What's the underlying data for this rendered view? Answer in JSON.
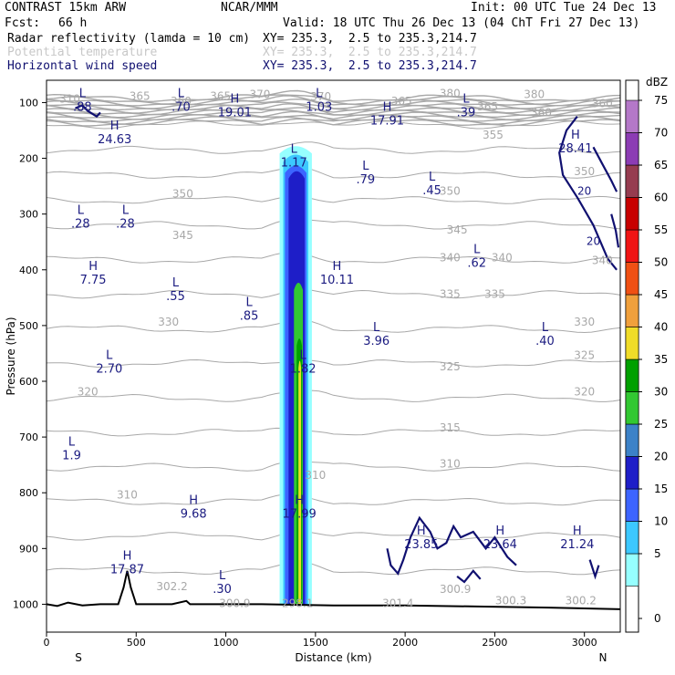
{
  "header": {
    "model": "CONTRAST 15km ARW",
    "org": "NCAR/MMM",
    "init": "Init: 00 UTC Tue 24 Dec 13",
    "fcst_label": "Fcst:",
    "fcst_value": "66 h",
    "valid": "Valid: 18 UTC Thu 26 Dec 13 (04 ChT Fri 27 Dec 13)",
    "fields": [
      {
        "name": "Radar reflectivity (lamda = 10 cm)",
        "xy": "XY= 235.3,  2.5 to 235.3,214.7",
        "color": "#000000"
      },
      {
        "name": "Potential temperature",
        "xy": "XY= 235.3,  2.5 to 235.3,214.7",
        "color": "#c8c8c8"
      },
      {
        "name": "Horizontal wind speed",
        "xy": "XY= 235.3,  2.5 to 235.3,214.7",
        "color": "#101070"
      }
    ]
  },
  "chart_data": {
    "type": "heatmap",
    "title": "",
    "xlabel": "Distance (km)",
    "ylabel": "Pressure (hPa)",
    "xlim": [
      0,
      3200
    ],
    "ylim": [
      1050,
      60
    ],
    "x_ticks": [
      0,
      500,
      1000,
      1500,
      2000,
      2500,
      3000
    ],
    "y_ticks": [
      100,
      200,
      300,
      400,
      500,
      600,
      700,
      800,
      900,
      1000
    ],
    "x_end_labels": {
      "left": "S",
      "right": "N"
    },
    "colorbar": {
      "unit": "dBZ",
      "levels": [
        0,
        5,
        10,
        15,
        20,
        25,
        30,
        35,
        40,
        45,
        50,
        55,
        60,
        65,
        70,
        75
      ],
      "colors": [
        "#ffffff",
        "#96ffff",
        "#3cc8ff",
        "#3c64ff",
        "#1e1ec8",
        "#3c82c8",
        "#32c832",
        "#00a000",
        "#f0dc28",
        "#f0a03c",
        "#f05014",
        "#f01414",
        "#c80000",
        "#963c50",
        "#8c3cb4",
        "#b478c8"
      ]
    },
    "reflectivity_core": {
      "x_km": [
        1300,
        1480
      ],
      "p_top_hPa": 175,
      "p_bottom_hPa": 1000,
      "max_dBZ": 35
    },
    "wind_speed_extrema": [
      {
        "type": "L",
        "value": ".88",
        "x": 200,
        "p": 90
      },
      {
        "type": "L",
        "value": ".70",
        "x": 750,
        "p": 90
      },
      {
        "type": "H",
        "value": "19.01",
        "x": 1050,
        "p": 100
      },
      {
        "type": "L",
        "value": "1.03",
        "x": 1520,
        "p": 90
      },
      {
        "type": "H",
        "value": "17.91",
        "x": 1900,
        "p": 115
      },
      {
        "type": "L",
        "value": ".39",
        "x": 2340,
        "p": 100
      },
      {
        "type": "H",
        "value": "24.63",
        "x": 380,
        "p": 148
      },
      {
        "type": "H",
        "value": "28.41",
        "x": 2950,
        "p": 165
      },
      {
        "type": "L",
        "value": "1.17",
        "x": 1380,
        "p": 190
      },
      {
        "type": "L",
        "value": ".79",
        "x": 1780,
        "p": 220
      },
      {
        "type": "L",
        "value": ".45",
        "x": 2150,
        "p": 240
      },
      {
        "type": "L",
        "value": ".28",
        "x": 190,
        "p": 300
      },
      {
        "type": "L",
        "value": ".28",
        "x": 440,
        "p": 300
      },
      {
        "type": "L",
        "value": ".62",
        "x": 2400,
        "p": 370
      },
      {
        "type": "H",
        "value": "7.75",
        "x": 260,
        "p": 400
      },
      {
        "type": "H",
        "value": "10.11",
        "x": 1620,
        "p": 400
      },
      {
        "type": "L",
        "value": ".55",
        "x": 720,
        "p": 430
      },
      {
        "type": "L",
        "value": ".85",
        "x": 1130,
        "p": 465
      },
      {
        "type": "L",
        "value": "3.96",
        "x": 1840,
        "p": 510
      },
      {
        "type": "L",
        "value": ".40",
        "x": 2780,
        "p": 510
      },
      {
        "type": "L",
        "value": "2.70",
        "x": 350,
        "p": 560
      },
      {
        "type": "L",
        "value": "1.82",
        "x": 1430,
        "p": 560
      },
      {
        "type": "L",
        "value": "1.9",
        "x": 140,
        "p": 715
      },
      {
        "type": "H",
        "value": "9.68",
        "x": 820,
        "p": 820
      },
      {
        "type": "H",
        "value": "17.99",
        "x": 1410,
        "p": 820
      },
      {
        "type": "H",
        "value": "23.85",
        "x": 2090,
        "p": 875
      },
      {
        "type": "H",
        "value": "23.64",
        "x": 2530,
        "p": 875
      },
      {
        "type": "H",
        "value": "21.24",
        "x": 2960,
        "p": 875
      },
      {
        "type": "H",
        "value": "17.87",
        "x": 450,
        "p": 920
      },
      {
        "type": "L",
        "value": ".30",
        "x": 980,
        "p": 955
      }
    ],
    "theta_labels": [
      {
        "value": "310",
        "x": 130,
        "p": 100
      },
      {
        "value": "365",
        "x": 520,
        "p": 95
      },
      {
        "value": "360",
        "x": 750,
        "p": 104
      },
      {
        "value": "365",
        "x": 970,
        "p": 95
      },
      {
        "value": "370",
        "x": 1190,
        "p": 92
      },
      {
        "value": "370",
        "x": 1530,
        "p": 96
      },
      {
        "value": "365",
        "x": 1980,
        "p": 104
      },
      {
        "value": "380",
        "x": 2250,
        "p": 90
      },
      {
        "value": "380",
        "x": 2720,
        "p": 92
      },
      {
        "value": "365",
        "x": 2460,
        "p": 114
      },
      {
        "value": "360",
        "x": 2760,
        "p": 125
      },
      {
        "value": "360",
        "x": 3100,
        "p": 108
      },
      {
        "value": "355",
        "x": 2490,
        "p": 165
      },
      {
        "value": "350",
        "x": 3000,
        "p": 230
      },
      {
        "value": "350",
        "x": 760,
        "p": 270
      },
      {
        "value": "350",
        "x": 2250,
        "p": 265
      },
      {
        "value": "345",
        "x": 760,
        "p": 345
      },
      {
        "value": "345",
        "x": 2290,
        "p": 335
      },
      {
        "value": "340",
        "x": 2250,
        "p": 385
      },
      {
        "value": "340",
        "x": 2540,
        "p": 385
      },
      {
        "value": "340",
        "x": 3100,
        "p": 390
      },
      {
        "value": "335",
        "x": 2250,
        "p": 450
      },
      {
        "value": "335",
        "x": 2500,
        "p": 450
      },
      {
        "value": "330",
        "x": 680,
        "p": 500
      },
      {
        "value": "330",
        "x": 3000,
        "p": 500
      },
      {
        "value": "325",
        "x": 2250,
        "p": 580
      },
      {
        "value": "325",
        "x": 3000,
        "p": 560
      },
      {
        "value": "320",
        "x": 230,
        "p": 625
      },
      {
        "value": "320",
        "x": 3000,
        "p": 625
      },
      {
        "value": "315",
        "x": 2250,
        "p": 690
      },
      {
        "value": "310",
        "x": 2250,
        "p": 755
      },
      {
        "value": "310",
        "x": 450,
        "p": 810
      },
      {
        "value": "310",
        "x": 1500,
        "p": 775
      },
      {
        "value": "302.2",
        "x": 700,
        "p": 975
      },
      {
        "value": "300.9",
        "x": 1050,
        "p": 1005
      },
      {
        "value": "298.1",
        "x": 1400,
        "p": 1005
      },
      {
        "value": "301.4",
        "x": 1960,
        "p": 1005
      },
      {
        "value": "300.9",
        "x": 2280,
        "p": 980
      },
      {
        "value": "300.3",
        "x": 2590,
        "p": 1000
      },
      {
        "value": "300.2",
        "x": 2980,
        "p": 1000
      }
    ],
    "wind_contour_labels": [
      {
        "value": "20",
        "x": 3000,
        "p": 265
      },
      {
        "value": "20",
        "x": 3050,
        "p": 355
      }
    ],
    "grid": false,
    "legend": "colorbar-right"
  }
}
